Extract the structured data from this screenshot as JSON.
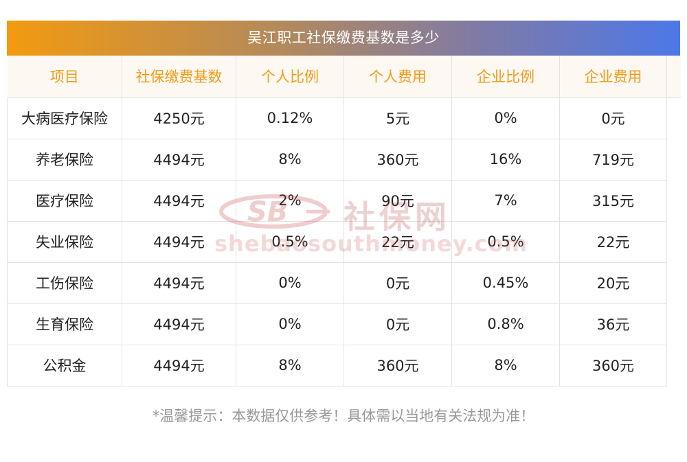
{
  "title": "吴江职工社保缴费基数是多少",
  "headers": [
    "项目",
    "社保缴费基数",
    "个人比例",
    "个人费用",
    "企业比例",
    "企业费用"
  ],
  "rows": [
    [
      "大病医疗保险",
      "4250元",
      "0.12%",
      "5元",
      "0%",
      "0元"
    ],
    [
      "养老保险",
      "4494元",
      "8%",
      "360元",
      "16%",
      "719元"
    ],
    [
      "医疗保险",
      "4494元",
      "2%",
      "90元",
      "7%",
      "315元"
    ],
    [
      "失业保险",
      "4494元",
      "0.5%",
      "22元",
      "0.5%",
      "22元"
    ],
    [
      "工伤保险",
      "4494元",
      "0%",
      "0元",
      "0.45%",
      "20元"
    ],
    [
      "生育保险",
      "4494元",
      "0%",
      "0元",
      "0.8%",
      "36元"
    ],
    [
      "公积金",
      "4494元",
      "8%",
      "360元",
      "8%",
      "360元"
    ]
  ],
  "watermark": {
    "logo": "SB",
    "cn": "社保网",
    "url": "shebaosouthmoney.com"
  },
  "note": "*温馨提示：本数据仅供参考！具体需以当地有关法规为准！",
  "colors": {
    "header_text": "#f39a18",
    "header_bg": "#fdf8f1",
    "gradient_start": "#f39a10",
    "gradient_end": "#4d78e8",
    "note_text": "#999999"
  }
}
